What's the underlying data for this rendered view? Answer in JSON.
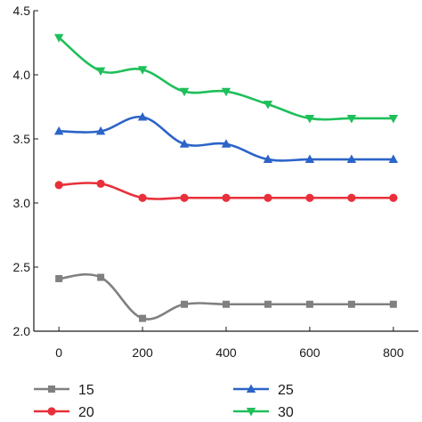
{
  "chart_data": {
    "type": "line",
    "x": [
      0,
      100,
      200,
      300,
      400,
      500,
      600,
      700,
      800
    ],
    "xticks": [
      "0",
      "200",
      "400",
      "600",
      "800"
    ],
    "yticks": [
      "2.0",
      "2.5",
      "3.0",
      "3.5",
      "4.0",
      "4.5"
    ],
    "xlim": [
      -60,
      860
    ],
    "ylim": [
      2.0,
      4.5
    ],
    "grid": false,
    "legend_position": "bottom",
    "series": [
      {
        "name": "15",
        "color": "#808080",
        "marker": "square",
        "values": [
          2.41,
          2.42,
          2.1,
          2.21,
          2.21,
          2.21,
          2.21,
          2.21,
          2.21
        ]
      },
      {
        "name": "20",
        "color": "#e8303a",
        "marker": "circle",
        "values": [
          3.14,
          3.15,
          3.04,
          3.04,
          3.04,
          3.04,
          3.04,
          3.04,
          3.04
        ]
      },
      {
        "name": "25",
        "color": "#2b64c8",
        "marker": "triangle-up",
        "values": [
          3.56,
          3.56,
          3.67,
          3.46,
          3.46,
          3.34,
          3.34,
          3.34,
          3.34
        ]
      },
      {
        "name": "30",
        "color": "#1fbf5a",
        "marker": "triangle-down",
        "values": [
          4.29,
          4.03,
          4.04,
          3.87,
          3.87,
          3.77,
          3.66,
          3.66,
          3.66
        ]
      }
    ]
  }
}
